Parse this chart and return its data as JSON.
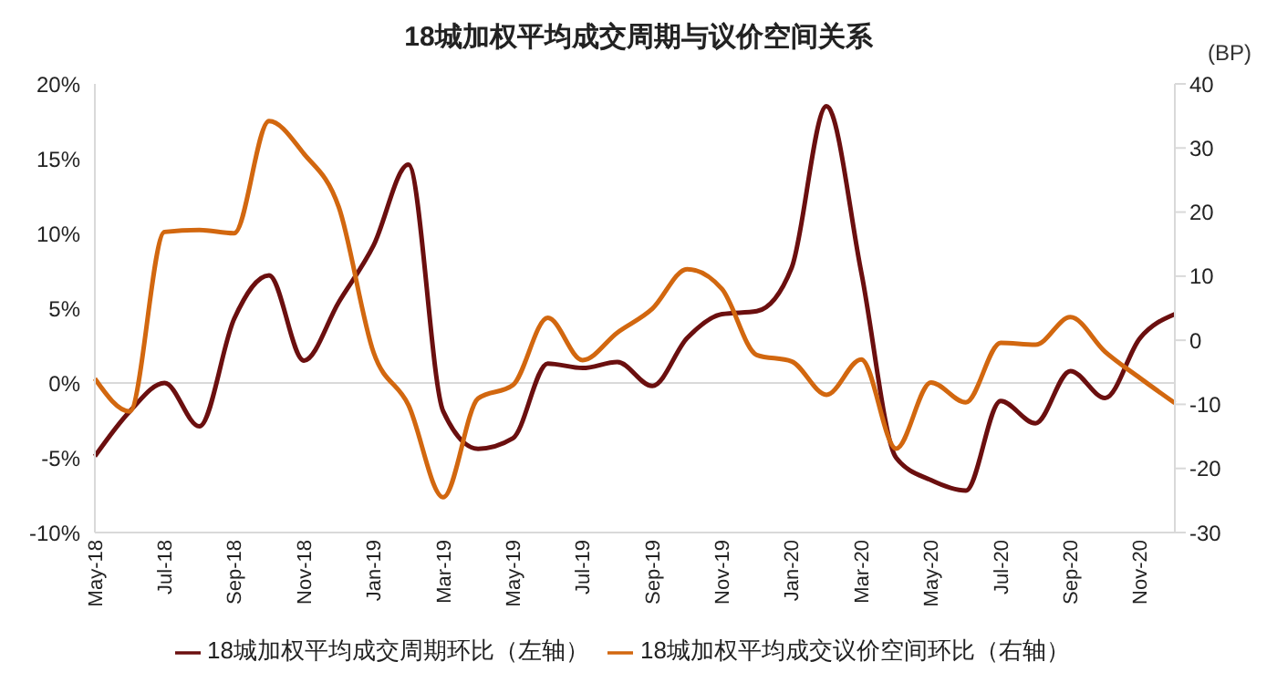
{
  "chart_data": {
    "type": "line",
    "title": "18城加权平均成交周期与议价空间关系",
    "y2label": "(BP)",
    "categories": [
      "May-18",
      null,
      "Jul-18",
      null,
      "Sep-18",
      null,
      "Nov-18",
      null,
      "Jan-19",
      null,
      "Mar-19",
      null,
      "May-19",
      null,
      "Jul-19",
      null,
      "Sep-19",
      null,
      "Nov-19",
      null,
      "Jan-20",
      null,
      "Mar-20",
      null,
      "May-20",
      null,
      "Jul-20",
      null,
      "Sep-20",
      null,
      "Nov-20",
      null
    ],
    "series": [
      {
        "name": "18城加权平均成交周期环比（左轴）",
        "color": "#6b0f0f",
        "values": [
          -4.9,
          -1.9,
          0,
          -2.9,
          4.3,
          7.2,
          1.5,
          5.4,
          9.2,
          14.6,
          -1.9,
          -4.4,
          -3.7,
          1.3,
          1.0,
          1.4,
          -0.2,
          3.0,
          4.6,
          4.8,
          7.7,
          18.5,
          7.4,
          -5.0,
          -6.5,
          -7.2,
          -1.2,
          -2.7,
          0.8,
          -1.0,
          3.0,
          4.6
        ]
      },
      {
        "name": "18城加权平均成交议价空间环比（右轴）",
        "color": "#d2670f",
        "axis": "y2",
        "values": [
          -6.0,
          -11.1,
          16.9,
          17.2,
          16.7,
          34.2,
          29.1,
          20.8,
          -1.9,
          -10.1,
          -24.5,
          -9.1,
          -7.0,
          3.5,
          -3.1,
          1.2,
          4.9,
          11.1,
          8.0,
          -2.3,
          -3.3,
          -8.5,
          -3.0,
          -16.9,
          -6.6,
          -9.7,
          -0.4,
          -0.7,
          3.6,
          -1.8,
          -5.9,
          -9.8
        ]
      }
    ],
    "ylim": [
      -10,
      20
    ],
    "yticks": [
      {
        "value": -10,
        "label": "-10%"
      },
      {
        "value": -5,
        "label": "-5%"
      },
      {
        "value": 0,
        "label": "0%"
      },
      {
        "value": 5,
        "label": "5%"
      },
      {
        "value": 10,
        "label": "10%"
      },
      {
        "value": 15,
        "label": "15%"
      },
      {
        "value": 20,
        "label": "20%"
      }
    ],
    "y2lim": [
      -30,
      40
    ],
    "y2ticks": [
      -30,
      -20,
      -10,
      0,
      10,
      20,
      30,
      40
    ],
    "ref_lines": [
      {
        "axis": "y",
        "value": 0,
        "color": "#d9d9d9"
      }
    ],
    "legend": "bottom",
    "grid": false,
    "marker": "none",
    "line_style": "solid"
  }
}
